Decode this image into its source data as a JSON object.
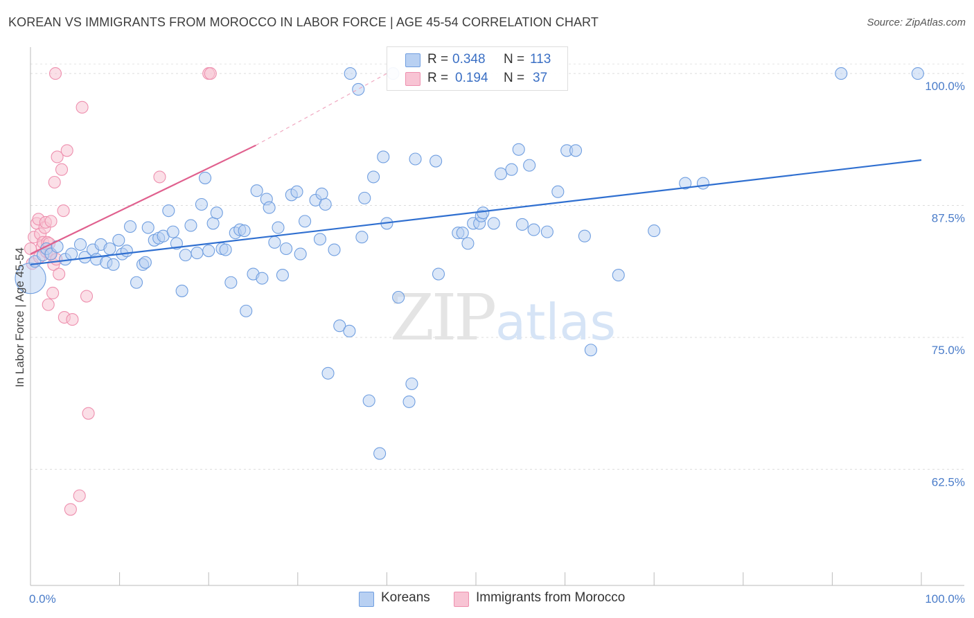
{
  "header": {
    "title": "KOREAN VS IMMIGRANTS FROM MOROCCO IN LABOR FORCE | AGE 45-54 CORRELATION CHART",
    "source": "Source: ZipAtlas.com"
  },
  "watermark": {
    "zip": "ZIP",
    "atlas": "atlas"
  },
  "legend": {
    "rows": [
      {
        "r_label": "R =",
        "r_value": "0.348",
        "n_label": "N =",
        "n_value": "113",
        "color": "#a9c6ef"
      },
      {
        "r_label": "R =",
        "r_value": "0.194",
        "n_label": "N =",
        "n_value": "37",
        "color": "#f7b6c9"
      }
    ]
  },
  "bottom_legend": {
    "koreans": "Koreans",
    "morocco": "Immigrants from Morocco"
  },
  "colors": {
    "blue": "#6f9ee0",
    "blue_fill": "#b8d0f2",
    "blue_line": "#2f6fd0",
    "pink": "#ee8fae",
    "pink_fill": "#f8c4d4",
    "pink_line": "#e0608e",
    "tick_text": "#4a7cc9"
  },
  "chart_data": {
    "type": "scatter",
    "xlabel": "",
    "ylabel": "In Labor Force | Age 45-54",
    "x_tick_labels": [
      "0.0%",
      "100.0%"
    ],
    "y_tick_labels": [
      "100.0%",
      "87.5%",
      "75.0%",
      "62.5%"
    ],
    "xlim": [
      0,
      100
    ],
    "ylim": [
      51.5,
      102.5
    ],
    "y_ticks": [
      100,
      87.5,
      75,
      62.5
    ],
    "grid": true,
    "series": [
      {
        "name": "Koreans",
        "trend": {
          "x": [
            0,
            100
          ],
          "y": [
            81.9,
            91.8
          ]
        },
        "points": [
          [
            0,
            80.6
          ],
          [
            0.5,
            82.2
          ],
          [
            1.4,
            82.8
          ],
          [
            1.8,
            83.4
          ],
          [
            2.3,
            82.9
          ],
          [
            3.0,
            83.6
          ],
          [
            3.9,
            82.4
          ],
          [
            4.6,
            82.9
          ],
          [
            5.6,
            83.8
          ],
          [
            6.1,
            82.6
          ],
          [
            7.0,
            83.3
          ],
          [
            7.4,
            82.4
          ],
          [
            7.9,
            83.8
          ],
          [
            8.5,
            82.1
          ],
          [
            8.9,
            83.4
          ],
          [
            9.3,
            81.9
          ],
          [
            9.9,
            84.2
          ],
          [
            10.3,
            82.9
          ],
          [
            10.8,
            83.2
          ],
          [
            11.2,
            85.5
          ],
          [
            11.9,
            80.2
          ],
          [
            12.6,
            81.9
          ],
          [
            12.9,
            82.1
          ],
          [
            13.2,
            85.4
          ],
          [
            13.9,
            84.2
          ],
          [
            14.4,
            84.4
          ],
          [
            14.9,
            84.6
          ],
          [
            15.5,
            87.0
          ],
          [
            16.0,
            85.0
          ],
          [
            16.4,
            83.9
          ],
          [
            17.0,
            79.4
          ],
          [
            17.4,
            82.8
          ],
          [
            18.0,
            85.6
          ],
          [
            18.7,
            83.0
          ],
          [
            19.2,
            87.6
          ],
          [
            19.6,
            90.1
          ],
          [
            20.0,
            83.2
          ],
          [
            20.5,
            85.8
          ],
          [
            20.9,
            86.8
          ],
          [
            21.5,
            83.4
          ],
          [
            21.9,
            83.3
          ],
          [
            22.5,
            80.2
          ],
          [
            23.0,
            84.9
          ],
          [
            23.5,
            85.2
          ],
          [
            24.0,
            85.1
          ],
          [
            24.2,
            77.5
          ],
          [
            25.0,
            81.0
          ],
          [
            25.4,
            88.9
          ],
          [
            26.0,
            80.6
          ],
          [
            26.5,
            88.1
          ],
          [
            26.8,
            87.3
          ],
          [
            27.4,
            84.0
          ],
          [
            27.8,
            85.4
          ],
          [
            28.3,
            80.9
          ],
          [
            28.7,
            83.4
          ],
          [
            29.3,
            88.5
          ],
          [
            29.9,
            88.8
          ],
          [
            30.3,
            82.9
          ],
          [
            30.8,
            86.0
          ],
          [
            32.0,
            88.0
          ],
          [
            32.5,
            84.3
          ],
          [
            32.7,
            88.6
          ],
          [
            33.1,
            87.6
          ],
          [
            33.4,
            71.6
          ],
          [
            34.1,
            83.3
          ],
          [
            34.7,
            76.1
          ],
          [
            35.8,
            75.6
          ],
          [
            35.9,
            100.0
          ],
          [
            36.8,
            98.5
          ],
          [
            37.2,
            84.5
          ],
          [
            37.5,
            88.2
          ],
          [
            38.0,
            69.0
          ],
          [
            38.5,
            90.2
          ],
          [
            39.2,
            64.0
          ],
          [
            39.6,
            92.1
          ],
          [
            40.0,
            85.8
          ],
          [
            40.7,
            100.0
          ],
          [
            41.3,
            78.8
          ],
          [
            42.5,
            68.9
          ],
          [
            42.8,
            70.6
          ],
          [
            43.2,
            91.9
          ],
          [
            45.5,
            91.7
          ],
          [
            45.8,
            81.0
          ],
          [
            48.0,
            84.9
          ],
          [
            48.5,
            84.9
          ],
          [
            49.1,
            83.9
          ],
          [
            49.7,
            85.8
          ],
          [
            50.4,
            85.8
          ],
          [
            50.6,
            86.5
          ],
          [
            50.8,
            86.8
          ],
          [
            52.0,
            85.8
          ],
          [
            52.8,
            90.5
          ],
          [
            54.0,
            90.9
          ],
          [
            54.8,
            92.8
          ],
          [
            55.2,
            85.7
          ],
          [
            56.0,
            91.3
          ],
          [
            56.5,
            85.2
          ],
          [
            58.0,
            85.0
          ],
          [
            59.2,
            88.8
          ],
          [
            60.2,
            92.7
          ],
          [
            61.2,
            92.7
          ],
          [
            62.2,
            84.6
          ],
          [
            62.9,
            73.8
          ],
          [
            66.0,
            80.9
          ],
          [
            70.0,
            85.1
          ],
          [
            73.5,
            89.6
          ],
          [
            75.5,
            89.6
          ],
          [
            91.0,
            100.0
          ],
          [
            99.6,
            100.0
          ]
        ]
      },
      {
        "name": "Immigrants from Morocco",
        "trend": {
          "x": [
            0,
            25.3
          ],
          "y": [
            82.9,
            93.2
          ]
        },
        "trend_extension": {
          "x": [
            25.3,
            40.0
          ],
          "y": [
            93.2,
            100.0
          ]
        },
        "points": [
          [
            0,
            83.4
          ],
          [
            0.2,
            82.0
          ],
          [
            0.4,
            84.5
          ],
          [
            0.7,
            85.8
          ],
          [
            0.9,
            86.2
          ],
          [
            1.0,
            82.6
          ],
          [
            1.1,
            84.8
          ],
          [
            1.3,
            83.6
          ],
          [
            1.4,
            84.0
          ],
          [
            1.6,
            85.4
          ],
          [
            1.7,
            85.9
          ],
          [
            1.8,
            83.1
          ],
          [
            1.9,
            84.0
          ],
          [
            2.0,
            78.1
          ],
          [
            2.1,
            83.9
          ],
          [
            2.2,
            82.9
          ],
          [
            2.3,
            86.0
          ],
          [
            2.5,
            79.2
          ],
          [
            2.6,
            81.9
          ],
          [
            2.7,
            89.7
          ],
          [
            2.8,
            100.0
          ],
          [
            2.9,
            82.4
          ],
          [
            3.0,
            92.1
          ],
          [
            3.2,
            81.0
          ],
          [
            3.5,
            90.9
          ],
          [
            3.7,
            87.0
          ],
          [
            3.8,
            76.9
          ],
          [
            4.1,
            92.7
          ],
          [
            4.5,
            58.7
          ],
          [
            4.7,
            76.7
          ],
          [
            5.5,
            60.0
          ],
          [
            5.8,
            96.8
          ],
          [
            6.3,
            78.9
          ],
          [
            6.5,
            67.8
          ],
          [
            14.5,
            90.2
          ],
          [
            20.0,
            100.0
          ],
          [
            20.2,
            100.0
          ]
        ]
      }
    ]
  }
}
